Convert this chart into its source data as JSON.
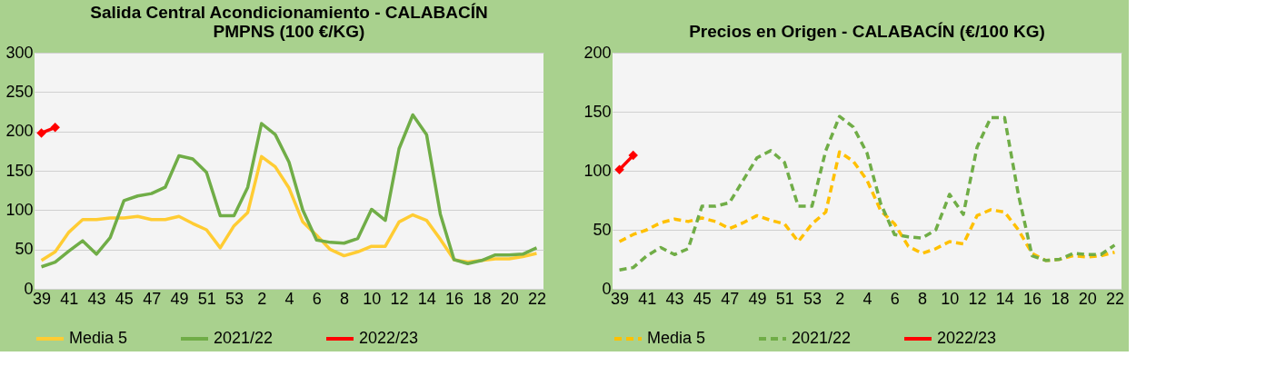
{
  "chart_data": [
    {
      "type": "line",
      "title": [
        "Salida Central Acondicionamiento - CALABACÍN",
        "PMPNS (100 €/KG)"
      ],
      "categories": [
        "39",
        null,
        "41",
        null,
        "43",
        null,
        "45",
        null,
        "47",
        null,
        "49",
        null,
        "51",
        null,
        "53",
        null,
        "2",
        null,
        "4",
        null,
        "6",
        null,
        "8",
        null,
        "10",
        null,
        "12",
        null,
        "14",
        null,
        "16",
        null,
        "18",
        null,
        "20",
        null,
        "22"
      ],
      "ylim": [
        0,
        300
      ],
      "yticks": [
        0,
        50,
        100,
        150,
        200,
        250,
        300
      ],
      "grid": "y",
      "legend": "bottom",
      "series": [
        {
          "name": "Media 5",
          "color": "#ffcc33",
          "line_style": "solid",
          "marker": "none",
          "values": [
            36,
            47,
            72,
            88,
            88,
            90,
            90,
            92,
            88,
            88,
            92,
            83,
            75,
            52,
            80,
            97,
            168,
            155,
            128,
            85,
            68,
            50,
            42,
            47,
            54,
            54,
            85,
            94,
            87,
            63,
            37,
            34,
            36,
            38,
            38,
            41,
            45
          ]
        },
        {
          "name": "2021/22",
          "color": "#70ad47",
          "line_style": "solid",
          "marker": "none",
          "values": [
            28,
            34,
            48,
            61,
            44,
            65,
            112,
            118,
            121,
            129,
            169,
            165,
            148,
            93,
            93,
            129,
            210,
            196,
            161,
            100,
            62,
            59,
            58,
            64,
            101,
            87,
            178,
            221,
            196,
            95,
            37,
            32,
            36,
            43,
            43,
            44,
            52
          ]
        },
        {
          "name": "2022/23",
          "color": "#ff0000",
          "line_style": "solid",
          "marker": "diamond",
          "values": [
            198,
            205,
            null,
            null,
            null,
            null,
            null,
            null,
            null,
            null,
            null,
            null,
            null,
            null,
            null,
            null,
            null,
            null,
            null,
            null,
            null,
            null,
            null,
            null,
            null,
            null,
            null,
            null,
            null,
            null,
            null,
            null,
            null,
            null,
            null,
            null,
            null
          ]
        }
      ]
    },
    {
      "type": "line",
      "title": [
        "Precios en Origen - CALABACÍN (€/100 KG)"
      ],
      "categories": [
        "39",
        null,
        "41",
        null,
        "43",
        null,
        "45",
        null,
        "47",
        null,
        "49",
        null,
        "51",
        null,
        "53",
        null,
        "2",
        null,
        "4",
        null,
        "6",
        null,
        "8",
        null,
        "10",
        null,
        "12",
        null,
        "14",
        null,
        "16",
        null,
        "18",
        null,
        "20",
        null,
        "22"
      ],
      "ylim": [
        0,
        200
      ],
      "yticks": [
        0,
        50,
        100,
        150,
        200
      ],
      "grid": "y",
      "legend": "bottom",
      "series": [
        {
          "name": "Media 5",
          "color": "#ffc000",
          "line_style": "dashed",
          "marker": "none",
          "values": [
            40,
            46,
            50,
            56,
            59,
            57,
            60,
            57,
            51,
            56,
            62,
            58,
            55,
            40,
            55,
            65,
            116,
            108,
            92,
            66,
            55,
            36,
            30,
            34,
            40,
            38,
            62,
            67,
            65,
            50,
            30,
            24,
            25,
            28,
            27,
            28,
            31
          ]
        },
        {
          "name": "2021/22",
          "color": "#70ad47",
          "line_style": "dashed",
          "marker": "none",
          "values": [
            16,
            18,
            28,
            35,
            29,
            34,
            70,
            70,
            73,
            92,
            111,
            117,
            107,
            70,
            70,
            117,
            146,
            137,
            115,
            72,
            46,
            44,
            43,
            50,
            80,
            63,
            120,
            145,
            145,
            80,
            28,
            24,
            25,
            30,
            29,
            29,
            37
          ]
        },
        {
          "name": "2022/23",
          "color": "#ff0000",
          "line_style": "solid",
          "marker": "diamond",
          "values": [
            101,
            113,
            null,
            null,
            null,
            null,
            null,
            null,
            null,
            null,
            null,
            null,
            null,
            null,
            null,
            null,
            null,
            null,
            null,
            null,
            null,
            null,
            null,
            null,
            null,
            null,
            null,
            null,
            null,
            null,
            null,
            null,
            null,
            null,
            null,
            null,
            null
          ]
        }
      ]
    }
  ]
}
